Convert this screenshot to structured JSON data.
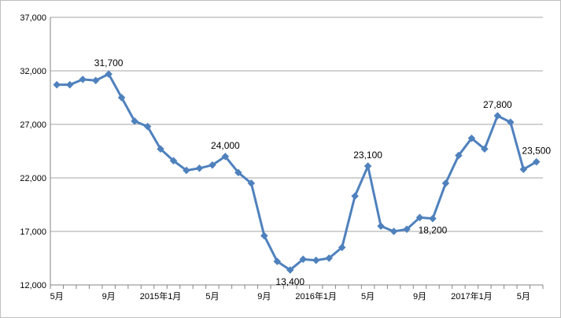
{
  "chart_data": {
    "type": "line",
    "title": "",
    "xlabel": "",
    "ylabel": "",
    "ylim": [
      12000,
      37000
    ],
    "y_ticks": [
      12000,
      17000,
      22000,
      27000,
      32000,
      37000
    ],
    "y_tick_labels": [
      "12,000",
      "17,000",
      "22,000",
      "27,000",
      "32,000",
      "37,000"
    ],
    "grid": "horizontal",
    "legend": "none",
    "series": [
      {
        "color": "#4f81bd",
        "marker": "diamond",
        "values": [
          30700,
          30700,
          31200,
          31100,
          31700,
          29500,
          27300,
          26800,
          24700,
          23600,
          22700,
          22900,
          23200,
          24000,
          22500,
          21500,
          16600,
          14200,
          13400,
          14400,
          14300,
          14500,
          15500,
          20300,
          23100,
          17500,
          17000,
          17200,
          18300,
          18200,
          21500,
          24100,
          25700,
          24700,
          27800,
          27200,
          22800,
          23500
        ]
      }
    ],
    "x_tick_labels": [
      {
        "index": 0,
        "text": "5月"
      },
      {
        "index": 4,
        "text": "9月"
      },
      {
        "index": 8,
        "text": "2015年1月"
      },
      {
        "index": 12,
        "text": "5月"
      },
      {
        "index": 16,
        "text": "9月"
      },
      {
        "index": 20,
        "text": "2016年1月"
      },
      {
        "index": 24,
        "text": "5月"
      },
      {
        "index": 28,
        "text": "9月"
      },
      {
        "index": 32,
        "text": "2017年1月"
      },
      {
        "index": 36,
        "text": "5月"
      }
    ],
    "annotations": [
      {
        "index": 4,
        "text": "31,700",
        "pos": "above"
      },
      {
        "index": 13,
        "text": "24,000",
        "pos": "above"
      },
      {
        "index": 18,
        "text": "13,400",
        "pos": "below"
      },
      {
        "index": 24,
        "text": "23,100",
        "pos": "above"
      },
      {
        "index": 29,
        "text": "18,200",
        "pos": "below"
      },
      {
        "index": 34,
        "text": "27,800",
        "pos": "above"
      },
      {
        "index": 37,
        "text": "23,500",
        "pos": "above"
      }
    ]
  }
}
